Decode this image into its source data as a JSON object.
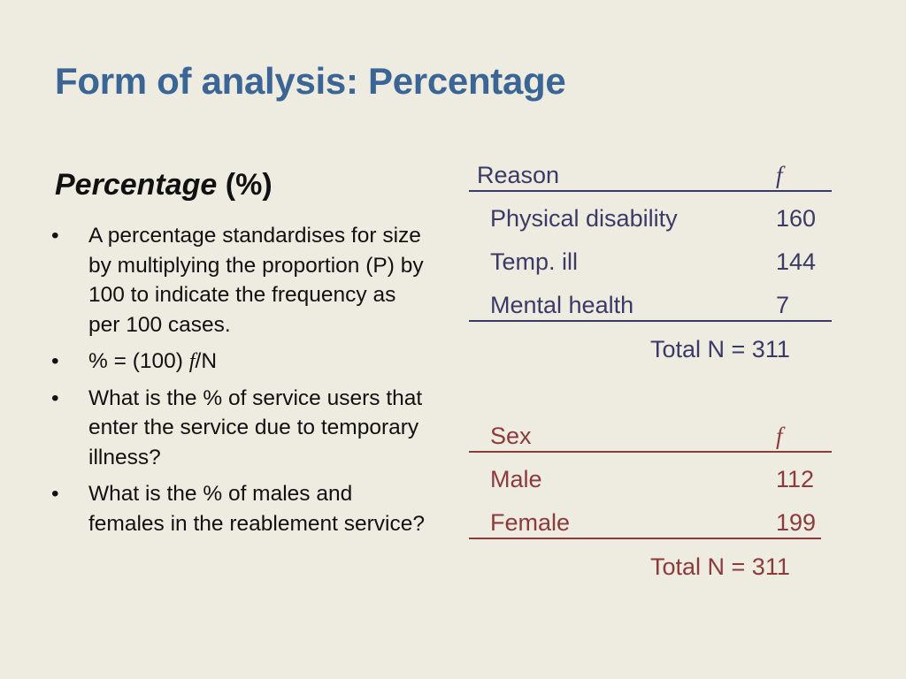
{
  "slide": {
    "title": "Form of analysis: Percentage",
    "subheading": {
      "term": "Percentage",
      "symbol": "(%)"
    },
    "bullets": [
      {
        "text": "A percentage standardises for size by multiplying the proportion (P) by 100 to indicate the frequency as per 100 cases."
      },
      {
        "before": "% = (100) ",
        "var": "f",
        "after": "/N"
      },
      {
        "text": "What is the % of service users that enter the service due to temporary illness?"
      },
      {
        "text": "What is the % of males and females in the reablement service?"
      }
    ],
    "bullet_symbol": "•"
  },
  "tables": {
    "reason": {
      "header_label": "Reason",
      "header_value": "f",
      "rows": [
        {
          "label": "Physical disability",
          "value": "160"
        },
        {
          "label": "Temp. ill",
          "value": "144"
        },
        {
          "label": "Mental health",
          "value": "7"
        }
      ],
      "total": "Total N = 311",
      "color": "#3b3a66"
    },
    "sex": {
      "header_label": "Sex",
      "header_value": "f",
      "rows": [
        {
          "label": "Male",
          "value": "112"
        },
        {
          "label": "Female",
          "value": "199"
        }
      ],
      "total": "Total N = 311",
      "color": "#8c3b3b"
    }
  },
  "colors": {
    "background": "#eeebe1",
    "title": "#3a6594",
    "body_text": "#111111"
  }
}
